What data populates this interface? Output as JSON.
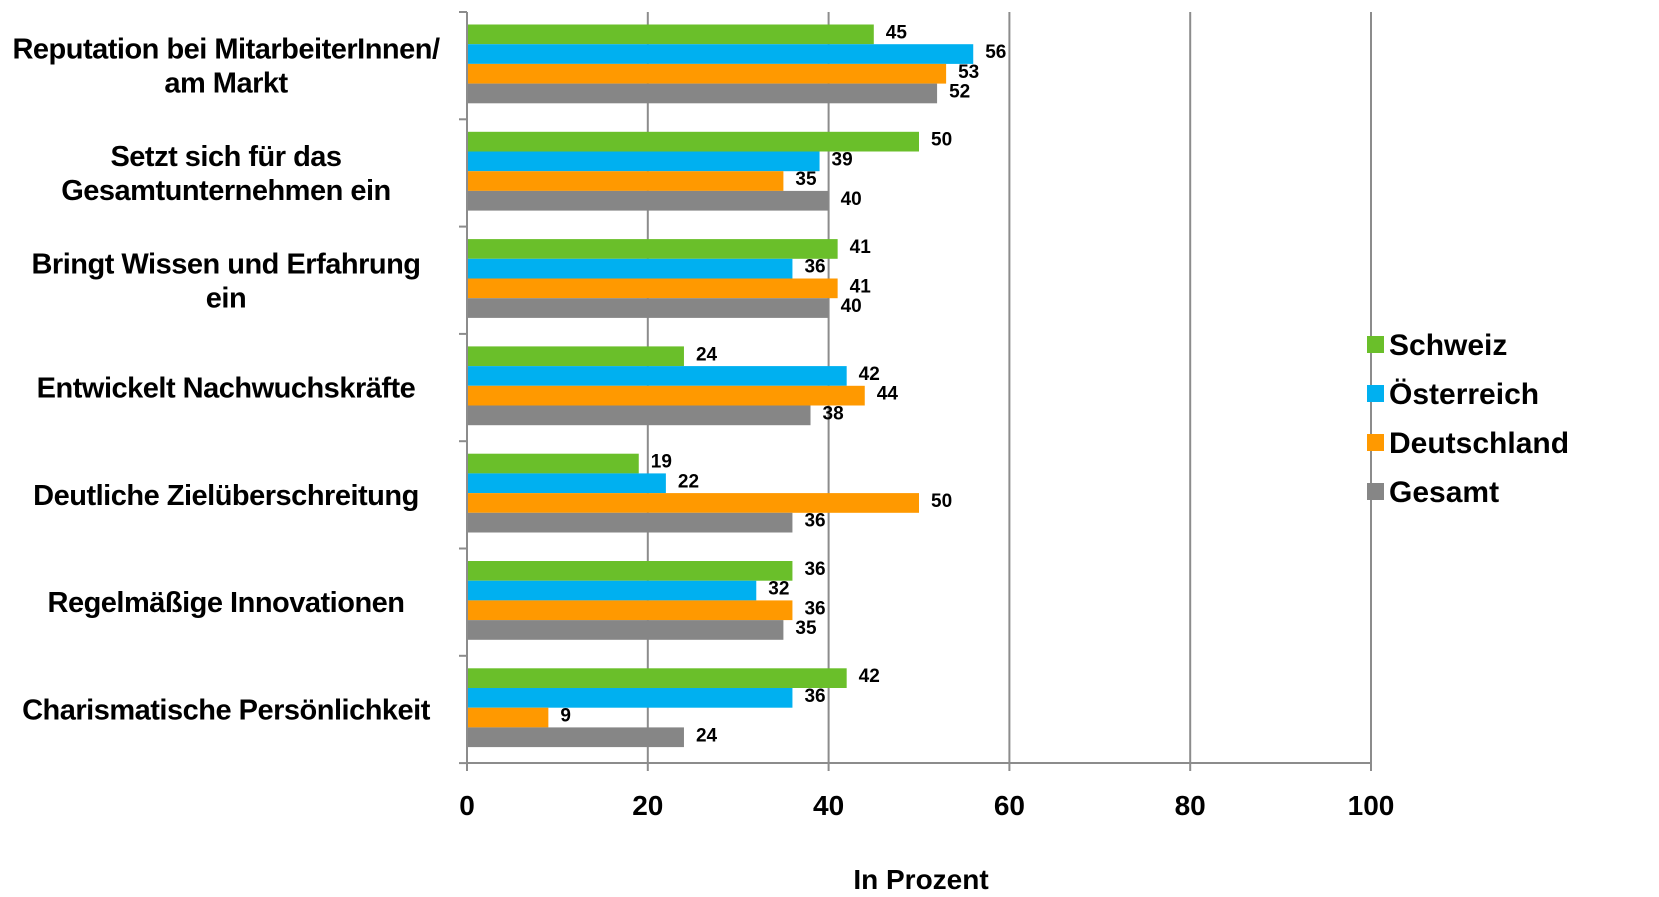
{
  "chart_data": {
    "type": "bar",
    "orientation": "horizontal",
    "categories": [
      [
        "Reputation bei MitarbeiterInnen/",
        "am Markt"
      ],
      [
        "Setzt sich für das",
        "Gesamtunternehmen ein"
      ],
      [
        "Bringt Wissen und Erfahrung",
        "ein"
      ],
      [
        "Entwickelt Nachwuchskräfte"
      ],
      [
        "Deutliche Zielüberschreitung"
      ],
      [
        "Regelmäßige Innovationen"
      ],
      [
        "Charismatische Persönlichkeit"
      ]
    ],
    "series": [
      {
        "name": "Schweiz",
        "color": "#6abf2a",
        "values": [
          45,
          50,
          41,
          24,
          19,
          36,
          42
        ]
      },
      {
        "name": "Österreich",
        "color": "#00b0f0",
        "values": [
          56,
          39,
          36,
          42,
          22,
          32,
          36
        ]
      },
      {
        "name": "Deutschland",
        "color": "#ff9900",
        "values": [
          53,
          35,
          41,
          44,
          50,
          36,
          9
        ]
      },
      {
        "name": "Gesamt",
        "color": "#868686",
        "values": [
          52,
          40,
          40,
          38,
          36,
          35,
          24
        ]
      }
    ],
    "xlabel": "In Prozent",
    "xlim": [
      0,
      100
    ],
    "xticks": [
      0,
      20,
      40,
      60,
      80,
      100
    ],
    "grid": true,
    "legend_position": "right"
  }
}
